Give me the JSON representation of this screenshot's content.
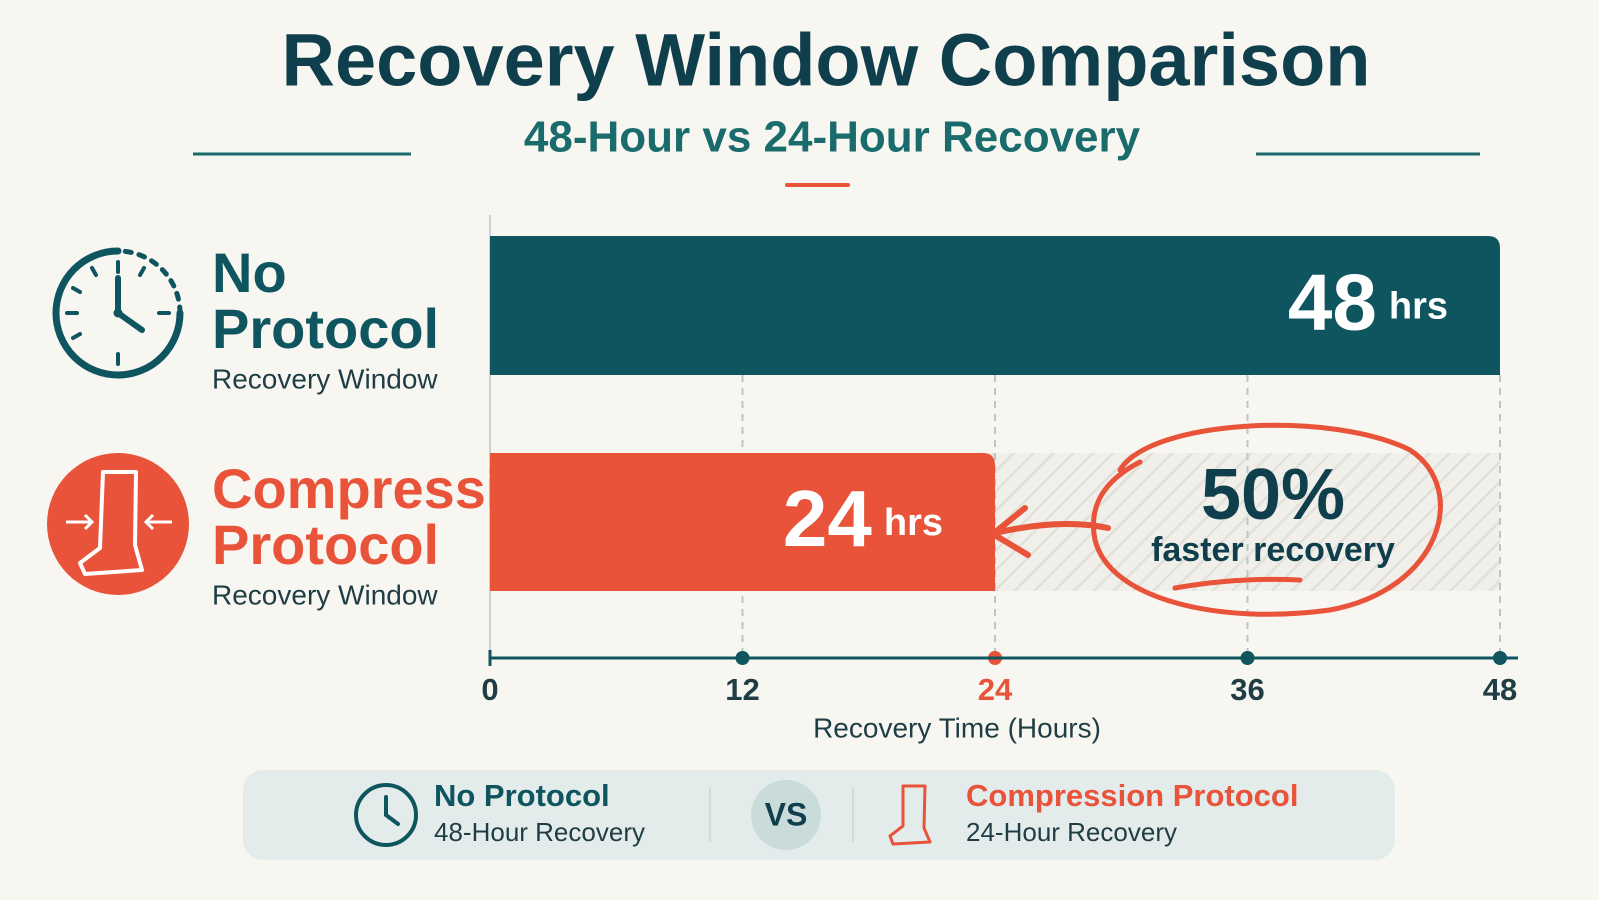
{
  "chart_data": {
    "type": "bar",
    "orientation": "horizontal",
    "title": "Recovery Window Comparison",
    "subtitle": "48-Hour vs 24-Hour Recovery",
    "categories": [
      "No Protocol",
      "Compression Protocol"
    ],
    "sublabels": [
      "Recovery Window",
      "Recovery Window"
    ],
    "values": [
      48,
      24
    ],
    "value_unit": "hrs",
    "colors": [
      "#0f5560",
      "#e8533a"
    ],
    "xlim": [
      0,
      48
    ],
    "xticks": [
      0,
      12,
      24,
      36,
      48
    ],
    "xlabel": "Recovery Time (Hours)",
    "grid": true,
    "annotation": {
      "headline": "50%",
      "text": "faster recovery"
    },
    "comparison": {
      "items": [
        {
          "title": "No Protocol",
          "subtitle": "48-Hour Recovery"
        },
        {
          "title": "Compression Protocol",
          "subtitle": "24-Hour Recovery"
        }
      ],
      "separator": "VS"
    }
  }
}
